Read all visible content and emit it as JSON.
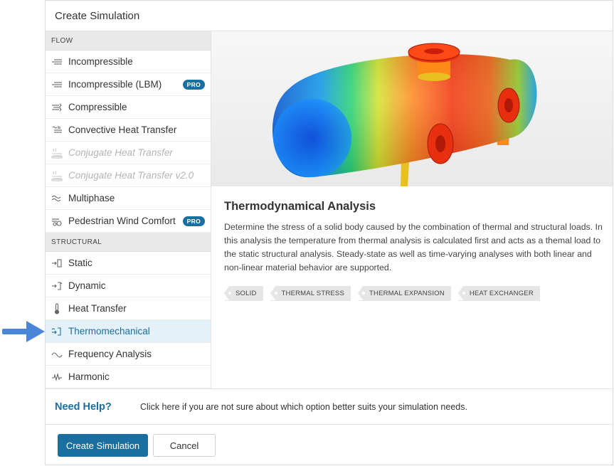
{
  "dialog": {
    "title": "Create Simulation"
  },
  "sidebar": {
    "categories": [
      {
        "label": "FLOW",
        "items": [
          {
            "label": "Incompressible",
            "icon": "flow-lines-icon",
            "state": "normal"
          },
          {
            "label": "Incompressible (LBM)",
            "icon": "flow-lines-icon",
            "state": "normal",
            "badge": "PRO"
          },
          {
            "label": "Compressible",
            "icon": "compressible-flow-icon",
            "state": "normal"
          },
          {
            "label": "Convective Heat Transfer",
            "icon": "convective-heat-icon",
            "state": "normal"
          },
          {
            "label": "Conjugate Heat Transfer",
            "icon": "conjugate-heat-icon",
            "state": "disabled"
          },
          {
            "label": "Conjugate Heat Transfer v2.0",
            "icon": "conjugate-heat-icon",
            "state": "disabled"
          },
          {
            "label": "Multiphase",
            "icon": "multiphase-icon",
            "state": "normal"
          },
          {
            "label": "Pedestrian Wind Comfort",
            "icon": "wind-comfort-icon",
            "state": "normal",
            "badge": "PRO"
          }
        ]
      },
      {
        "label": "STRUCTURAL",
        "items": [
          {
            "label": "Static",
            "icon": "static-load-icon",
            "state": "normal"
          },
          {
            "label": "Dynamic",
            "icon": "dynamic-load-icon",
            "state": "normal"
          },
          {
            "label": "Heat Transfer",
            "icon": "thermometer-icon",
            "state": "normal"
          },
          {
            "label": "Thermomechanical",
            "icon": "thermomechanical-icon",
            "state": "selected"
          },
          {
            "label": "Frequency Analysis",
            "icon": "sine-wave-icon",
            "state": "normal"
          },
          {
            "label": "Harmonic",
            "icon": "harmonic-wave-icon",
            "state": "normal"
          }
        ]
      }
    ]
  },
  "main": {
    "title": "Thermodynamical Analysis",
    "description": "Determine the stress of a solid body caused by the combination of thermal and structural loads. In this analysis the temperature from thermal analysis is calculated first and acts as a themal load to the static structural analysis. Steady-state as well as time-varying analyses with both linear and non-linear material behavior are supported.",
    "tags": [
      "SOLID",
      "THERMAL STRESS",
      "THERMAL EXPANSION",
      "HEAT EXCHANGER"
    ]
  },
  "help": {
    "title": "Need Help?",
    "text": "Click here if you are not sure about which option better suits your simulation needs."
  },
  "footer": {
    "create_label": "Create Simulation",
    "cancel_label": "Cancel"
  },
  "colors": {
    "accent": "#1a6fa0",
    "selected_bg": "#e4f1f8",
    "arrow": "#4a86d8"
  }
}
